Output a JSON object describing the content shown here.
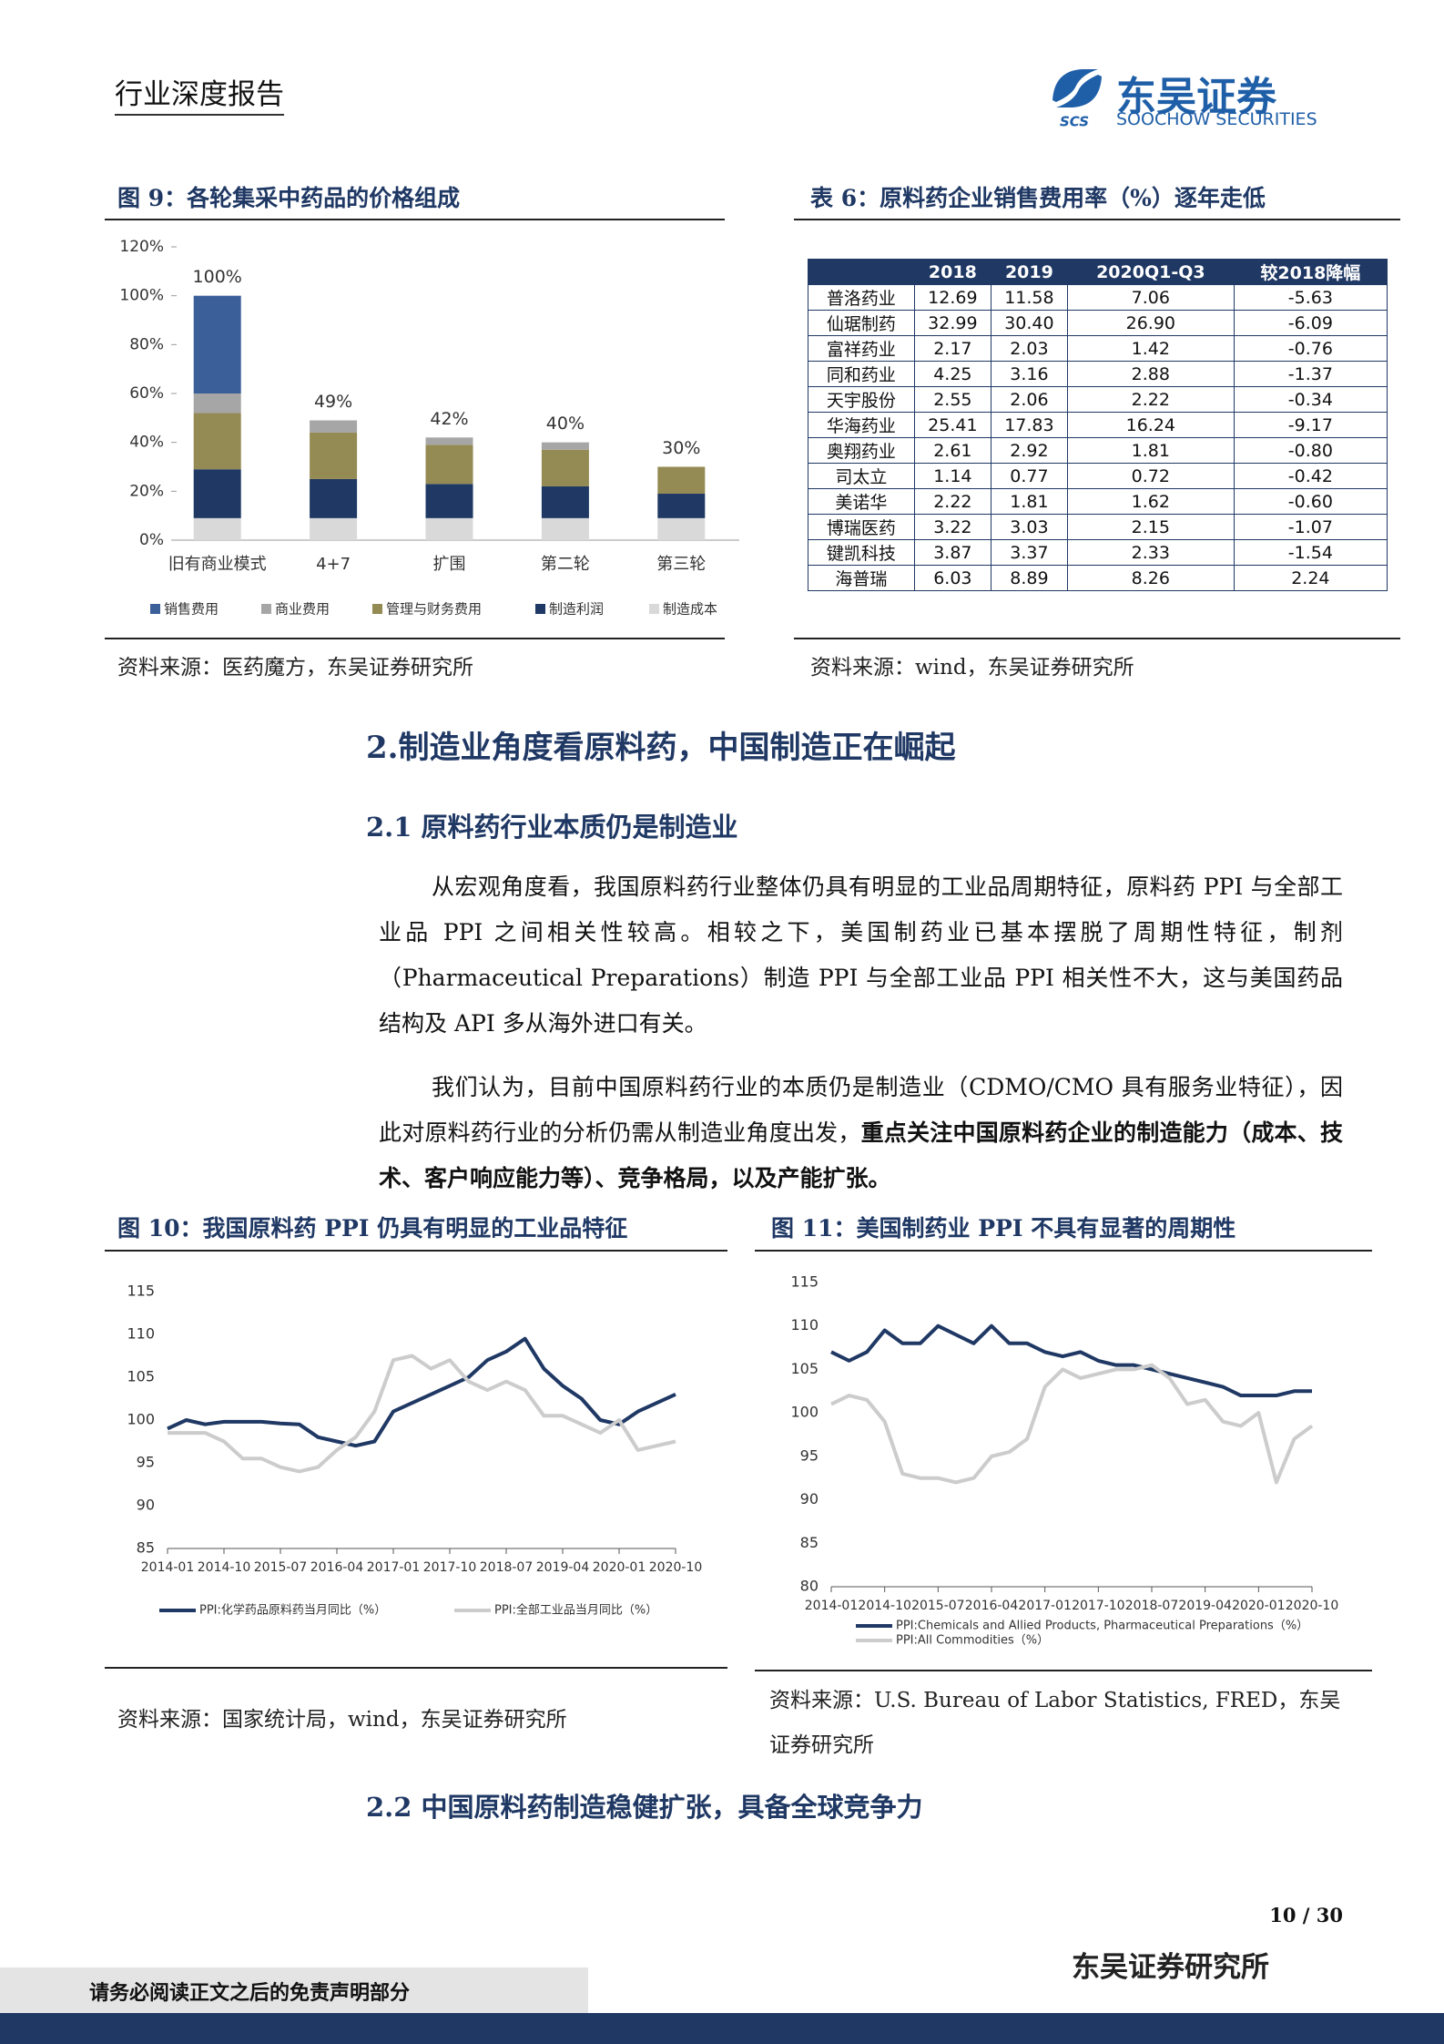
{
  "header": {
    "report_type": "行业深度报告",
    "brand_cn": "东吴证券",
    "brand_abbr": "SCS",
    "brand_en": "SOOCHOW SECURITIES"
  },
  "chart_data": [
    {
      "type": "bar",
      "title": "图 9：各轮集采中药品的价格组成",
      "stacked": true,
      "categories": [
        "旧有商业模式",
        "4+7",
        "扩围",
        "第二轮",
        "第三轮"
      ],
      "series": [
        {
          "name": "销售费用",
          "color": "#3b5f98",
          "values": [
            40,
            0,
            0,
            0,
            0
          ]
        },
        {
          "name": "商业费用",
          "color": "#a6a6a6",
          "values": [
            8,
            5,
            3,
            3,
            0
          ]
        },
        {
          "name": "管理与财务费用",
          "color": "#948a54",
          "values": [
            23,
            19,
            16,
            15,
            11
          ]
        },
        {
          "name": "制造利润",
          "color": "#1f3864",
          "values": [
            20,
            16,
            14,
            13,
            10
          ]
        },
        {
          "name": "制造成本",
          "color": "#d9d9d9",
          "values": [
            9,
            9,
            9,
            9,
            9
          ]
        }
      ],
      "totals": [
        100,
        49,
        42,
        40,
        30
      ],
      "total_labels": [
        "100%",
        "49%",
        "42%",
        "40%",
        "30%"
      ],
      "ylim": [
        0,
        120
      ],
      "yticks": [
        {
          "value": 0,
          "label": "0%"
        },
        {
          "value": 20,
          "label": "20%"
        },
        {
          "value": 40,
          "label": "40%"
        },
        {
          "value": 60,
          "label": "60%"
        },
        {
          "value": 80,
          "label": "80%"
        },
        {
          "value": 100,
          "label": "100%"
        },
        {
          "value": 120,
          "label": "120%"
        }
      ],
      "grid": false,
      "legend": "bottom"
    },
    {
      "type": "line",
      "title": "图 10：我国原料药 PPI 仍具有明显的工业品特征",
      "x": [
        "2014-01",
        "2014-04",
        "2014-07",
        "2014-10",
        "2015-01",
        "2015-04",
        "2015-07",
        "2015-10",
        "2016-01",
        "2016-04",
        "2016-07",
        "2016-10",
        "2017-01",
        "2017-04",
        "2017-07",
        "2017-10",
        "2018-01",
        "2018-04",
        "2018-07",
        "2018-10",
        "2019-01",
        "2019-04",
        "2019-07",
        "2019-10",
        "2020-01",
        "2020-04",
        "2020-07",
        "2020-10"
      ],
      "series": [
        {
          "name": "PPI:化学药品原料药当月同比（%）",
          "color": "#1f3864",
          "values": [
            99,
            100,
            99.5,
            99.8,
            99.8,
            99.8,
            99.6,
            99.5,
            98,
            97.5,
            97,
            97.5,
            101,
            102,
            103,
            104,
            105,
            107,
            108,
            109.5,
            106,
            104,
            102.5,
            100,
            99.5,
            101,
            102,
            103
          ]
        },
        {
          "name": "PPI:全部工业品当月同比（%）",
          "color": "#cccccc",
          "values": [
            98.5,
            98.5,
            98.5,
            97.5,
            95.5,
            95.5,
            94.5,
            94,
            94.5,
            96.5,
            98,
            101,
            107,
            107.5,
            106,
            107,
            104.5,
            103.5,
            104.5,
            103.5,
            100.5,
            100.5,
            99.5,
            98.5,
            100,
            96.5,
            97,
            97.5
          ]
        }
      ],
      "xlim": [
        "2014-01",
        "2020-10"
      ],
      "xticks": [
        "2014-01",
        "2014-10",
        "2015-07",
        "2016-04",
        "2017-01",
        "2017-10",
        "2018-07",
        "2019-04",
        "2020-01",
        "2020-10"
      ],
      "ylim": [
        85,
        115
      ],
      "yticks": [
        85,
        90,
        95,
        100,
        105,
        110,
        115
      ],
      "grid": false,
      "legend": "bottom"
    },
    {
      "type": "line",
      "title": "图 11：美国制药业 PPI 不具有显著的周期性",
      "x": [
        "2014-01",
        "2014-04",
        "2014-07",
        "2014-10",
        "2015-01",
        "2015-04",
        "2015-07",
        "2015-10",
        "2016-01",
        "2016-04",
        "2016-07",
        "2016-10",
        "2017-01",
        "2017-04",
        "2017-07",
        "2017-10",
        "2018-01",
        "2018-04",
        "2018-07",
        "2018-10",
        "2019-01",
        "2019-04",
        "2019-07",
        "2019-10",
        "2020-01",
        "2020-04",
        "2020-07",
        "2020-10"
      ],
      "series": [
        {
          "name": "PPI:Chemicals and Allied Products, Pharmaceutical Preparations（%）",
          "color": "#1f3864",
          "values": [
            107,
            106,
            107,
            109.5,
            108,
            108,
            110,
            109,
            108,
            110,
            108,
            108,
            107,
            106.5,
            107,
            106,
            105.5,
            105.5,
            105,
            104.5,
            104,
            103.5,
            103,
            102,
            102,
            102,
            102.5,
            102.5
          ]
        },
        {
          "name": "PPI:All Commodities（%）",
          "color": "#cccccc",
          "values": [
            101,
            102,
            101.5,
            99,
            93,
            92.5,
            92.5,
            92,
            92.5,
            95,
            95.5,
            97,
            103,
            105,
            104,
            104.5,
            105,
            105,
            105.5,
            104,
            101,
            101.5,
            99,
            98.5,
            100,
            92,
            97,
            98.5
          ]
        }
      ],
      "xlim": [
        "2014-01",
        "2020-10"
      ],
      "xticks": [
        "2014-01",
        "2014-10",
        "2015-07",
        "2016-04",
        "2017-01",
        "2017-10",
        "2018-07",
        "2019-04",
        "2020-01",
        "2020-10"
      ],
      "ylim": [
        80,
        115
      ],
      "yticks": [
        80,
        85,
        90,
        95,
        100,
        105,
        110,
        115
      ],
      "grid": false,
      "legend": "bottom"
    }
  ],
  "table": {
    "title": "表 6：原料药企业销售费用率（%）逐年走低",
    "columns": [
      "2018",
      "2019",
      "2020Q1-Q3",
      "较2018降幅"
    ],
    "rows": [
      [
        "普洛药业",
        "12.69",
        "11.58",
        "7.06",
        "-5.63"
      ],
      [
        "仙琚制药",
        "32.99",
        "30.40",
        "26.90",
        "-6.09"
      ],
      [
        "富祥药业",
        "2.17",
        "2.03",
        "1.42",
        "-0.76"
      ],
      [
        "同和药业",
        "4.25",
        "3.16",
        "2.88",
        "-1.37"
      ],
      [
        "天宇股份",
        "2.55",
        "2.06",
        "2.22",
        "-0.34"
      ],
      [
        "华海药业",
        "25.41",
        "17.83",
        "16.24",
        "-9.17"
      ],
      [
        "奥翔药业",
        "2.61",
        "2.92",
        "1.81",
        "-0.80"
      ],
      [
        "司太立",
        "1.14",
        "0.77",
        "0.72",
        "-0.42"
      ],
      [
        "美诺华",
        "2.22",
        "1.81",
        "1.62",
        "-0.60"
      ],
      [
        "博瑞医药",
        "3.22",
        "3.03",
        "2.15",
        "-1.07"
      ],
      [
        "键凯科技",
        "3.87",
        "3.37",
        "2.33",
        "-1.54"
      ],
      [
        "海普瑞",
        "6.03",
        "8.89",
        "8.26",
        "2.24"
      ]
    ]
  },
  "sources": [
    "资料来源：医药魔方，东吴证券研究所",
    "资料来源：wind，东吴证券研究所",
    "资料来源：国家统计局，wind，东吴证券研究所",
    "资料来源：U.S. Bureau of Labor Statistics, FRED，东吴证券研究所"
  ],
  "sections": [
    {
      "heading": "2.制造业角度看原料药，中国制造正在崛起"
    },
    {
      "heading": "2.1 原料药行业本质仍是制造业",
      "paragraphs": [
        {
          "text": "从宏观角度看，我国原料药行业整体仍具有明显的工业品周期特征，原料药 PPI 与全部工业品 PPI 之间相关性较高。相较之下，美国制药业已基本摆脱了周期性特征，制剂（Pharmaceutical Preparations）制造 PPI 与全部工业品 PPI 相关性不大，这与美国药品结构及 API 多从海外进口有关。"
        },
        {
          "text": "我们认为，目前中国原料药行业的本质仍是制造业（CDMO/CMO 具有服务业特征），因此对原料药行业的分析仍需从制造业角度出发，",
          "bold": "重点关注中国原料药企业的制造能力（成本、技术、客户响应能力等）、竞争格局，以及产能扩张。"
        }
      ]
    },
    {
      "heading": "2.2  中国原料药制造稳健扩张，具备全球竞争力"
    }
  ],
  "footer": {
    "page": "10 / 30",
    "institute": "东吴证券研究所",
    "disclaimer": "请务必阅读正文之后的免责声明部分"
  }
}
